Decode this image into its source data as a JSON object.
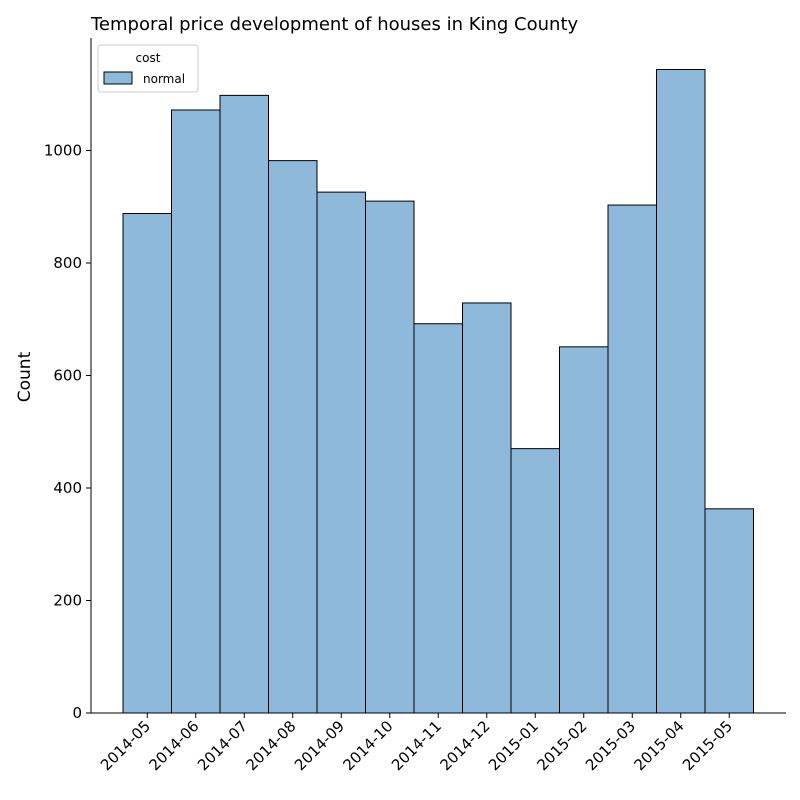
{
  "chart_data": {
    "type": "bar",
    "title": "Temporal price development of houses in King County",
    "xlabel": "",
    "ylabel": "Count",
    "categories": [
      "2014-05",
      "2014-06",
      "2014-07",
      "2014-08",
      "2014-09",
      "2014-10",
      "2014-11",
      "2014-12",
      "2015-01",
      "2015-02",
      "2015-03",
      "2015-04",
      "2015-05"
    ],
    "series": [
      {
        "name": "normal",
        "values": [
          888,
          1072,
          1098,
          982,
          926,
          910,
          692,
          729,
          470,
          651,
          903,
          1144,
          363
        ]
      }
    ],
    "yticks": [
      0,
      200,
      400,
      600,
      800,
      1000
    ],
    "ylim": [
      0,
      1200
    ],
    "grid": false,
    "legend": {
      "title": "cost",
      "position": "top-left"
    },
    "colors": {
      "bar_fill": "#8fb9da",
      "bar_edge": "#000000"
    }
  }
}
